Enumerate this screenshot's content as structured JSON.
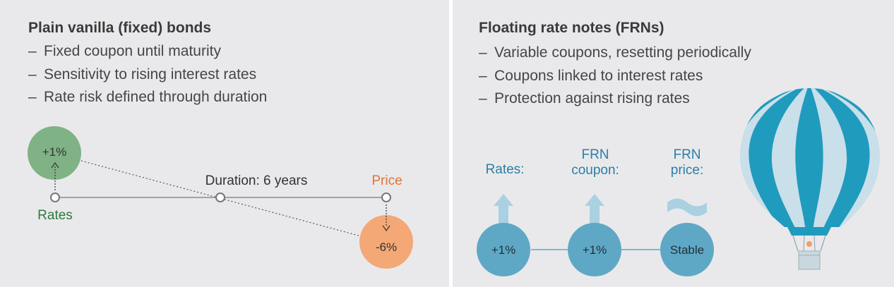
{
  "left": {
    "title": "Plain vanilla (fixed) bonds",
    "bullets": [
      "Fixed coupon until maturity",
      "Sensitivity to rising interest rates",
      "Rate risk defined through duration"
    ],
    "dash": "–",
    "diagram": {
      "rates_change": "+1%",
      "rates_label": "Rates",
      "duration_label": "Duration: 6 years",
      "price_label": "Price",
      "price_change": "-6%",
      "colors": {
        "rates": "#7fb284",
        "rates_text": "#2f7a3d",
        "price": "#f3a876",
        "price_text": "#e27436",
        "axis": "#8a8a8a"
      }
    }
  },
  "right": {
    "title": "Floating rate notes (FRNs)",
    "bullets": [
      "Variable coupons, resetting periodically",
      "Coupons linked to interest rates",
      "Protection against rising rates"
    ],
    "dash": "–",
    "diagram": {
      "col1_label": "Rates:",
      "col2_label_line1": "FRN",
      "col2_label_line2": "coupon:",
      "col3_label_line1": "FRN",
      "col3_label_line2": "price:",
      "col1_value": "+1%",
      "col2_value": "+1%",
      "col3_value": "Stable",
      "colors": {
        "circle": "#5fa8c5",
        "label": "#2b7fa6",
        "arrow": "#a9d1e2",
        "wave": "#a9d1e2",
        "balloon_stripe": "#1f9bbd",
        "balloon_light": "#c9dfea"
      }
    },
    "icons": [
      "up-arrow-icon",
      "up-arrow-icon",
      "tilde-wave-icon",
      "hot-air-balloon-icon"
    ]
  }
}
